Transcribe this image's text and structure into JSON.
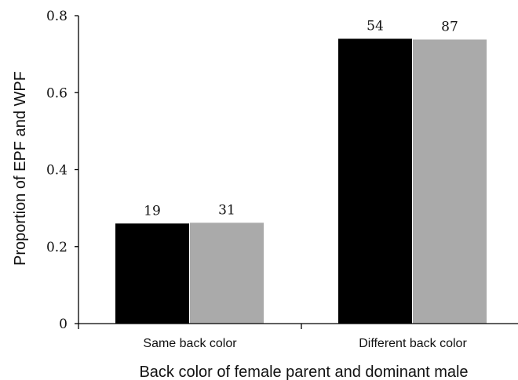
{
  "chart_data": {
    "type": "bar",
    "title": "",
    "xlabel": "Back color of female parent and dominant male",
    "ylabel": "Proportion of EPF and WPF",
    "ylim": [
      0,
      0.8
    ],
    "yticks": [
      "0",
      "0.2",
      "0.4",
      "0.6",
      "0.8"
    ],
    "categories": [
      "Same back color",
      "Different back color"
    ],
    "series": [
      {
        "color": "#000000",
        "values": [
          0.26,
          0.74
        ],
        "labels": [
          "19",
          "54"
        ]
      },
      {
        "color": "#aaaaaa",
        "values": [
          0.262,
          0.738
        ],
        "labels": [
          "31",
          "87"
        ]
      }
    ],
    "grid": false,
    "legend": "none"
  }
}
